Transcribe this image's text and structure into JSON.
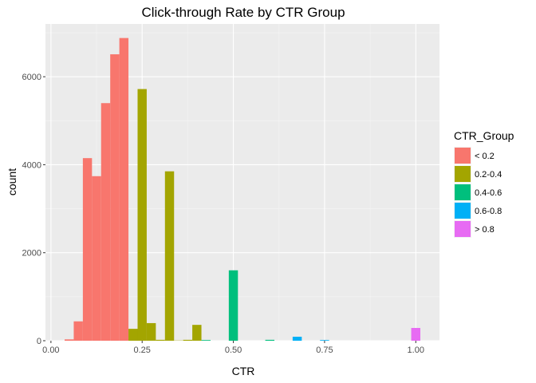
{
  "chart_data": {
    "type": "bar",
    "title": "Click-through Rate by CTR Group",
    "xlabel": "CTR",
    "ylabel": "count",
    "xlim": [
      -0.015,
      1.065
    ],
    "ylim": [
      0,
      7200
    ],
    "bin_width": 0.025,
    "x_ticks": [
      {
        "value": 0.0,
        "label": "0.00"
      },
      {
        "value": 0.25,
        "label": "0.25"
      },
      {
        "value": 0.5,
        "label": "0.50"
      },
      {
        "value": 0.75,
        "label": "0.75"
      },
      {
        "value": 1.0,
        "label": "1.00"
      }
    ],
    "y_ticks": [
      {
        "value": 0,
        "label": "0"
      },
      {
        "value": 2000,
        "label": "2000"
      },
      {
        "value": 4000,
        "label": "4000"
      },
      {
        "value": 6000,
        "label": "6000"
      }
    ],
    "legend": {
      "title": "CTR_Group",
      "position": "right",
      "entries": [
        {
          "label": "< 0.2",
          "color": "#F8766D"
        },
        {
          "label": "0.2-0.4",
          "color": "#A3A500"
        },
        {
          "label": "0.4-0.6",
          "color": "#00BF7D"
        },
        {
          "label": "0.6-0.8",
          "color": "#00B0F6"
        },
        {
          "label": "> 0.8",
          "color": "#E76BF3"
        }
      ]
    },
    "grid": true,
    "series": [
      {
        "name": "< 0.2",
        "color": "#F8766D",
        "bins": [
          {
            "x": 0.05,
            "y": 30
          },
          {
            "x": 0.075,
            "y": 440
          },
          {
            "x": 0.1,
            "y": 4150
          },
          {
            "x": 0.125,
            "y": 3740
          },
          {
            "x": 0.15,
            "y": 5400
          },
          {
            "x": 0.175,
            "y": 6510
          },
          {
            "x": 0.2,
            "y": 6880
          }
        ]
      },
      {
        "name": "0.2-0.4",
        "color": "#A3A500",
        "bins": [
          {
            "x": 0.225,
            "y": 270
          },
          {
            "x": 0.25,
            "y": 5720
          },
          {
            "x": 0.275,
            "y": 400
          },
          {
            "x": 0.3,
            "y": 20
          },
          {
            "x": 0.325,
            "y": 3850
          },
          {
            "x": 0.35,
            "y": 5
          },
          {
            "x": 0.375,
            "y": 20
          },
          {
            "x": 0.4,
            "y": 360
          }
        ]
      },
      {
        "name": "0.4-0.6",
        "color": "#00BF7D",
        "bins": [
          {
            "x": 0.425,
            "y": 15
          },
          {
            "x": 0.5,
            "y": 1600
          },
          {
            "x": 0.6,
            "y": 20
          }
        ]
      },
      {
        "name": "0.6-0.8",
        "color": "#00B0F6",
        "bins": [
          {
            "x": 0.675,
            "y": 90
          },
          {
            "x": 0.75,
            "y": 15
          }
        ]
      },
      {
        "name": "> 0.8",
        "color": "#E76BF3",
        "bins": [
          {
            "x": 1.0,
            "y": 290
          }
        ]
      }
    ]
  }
}
